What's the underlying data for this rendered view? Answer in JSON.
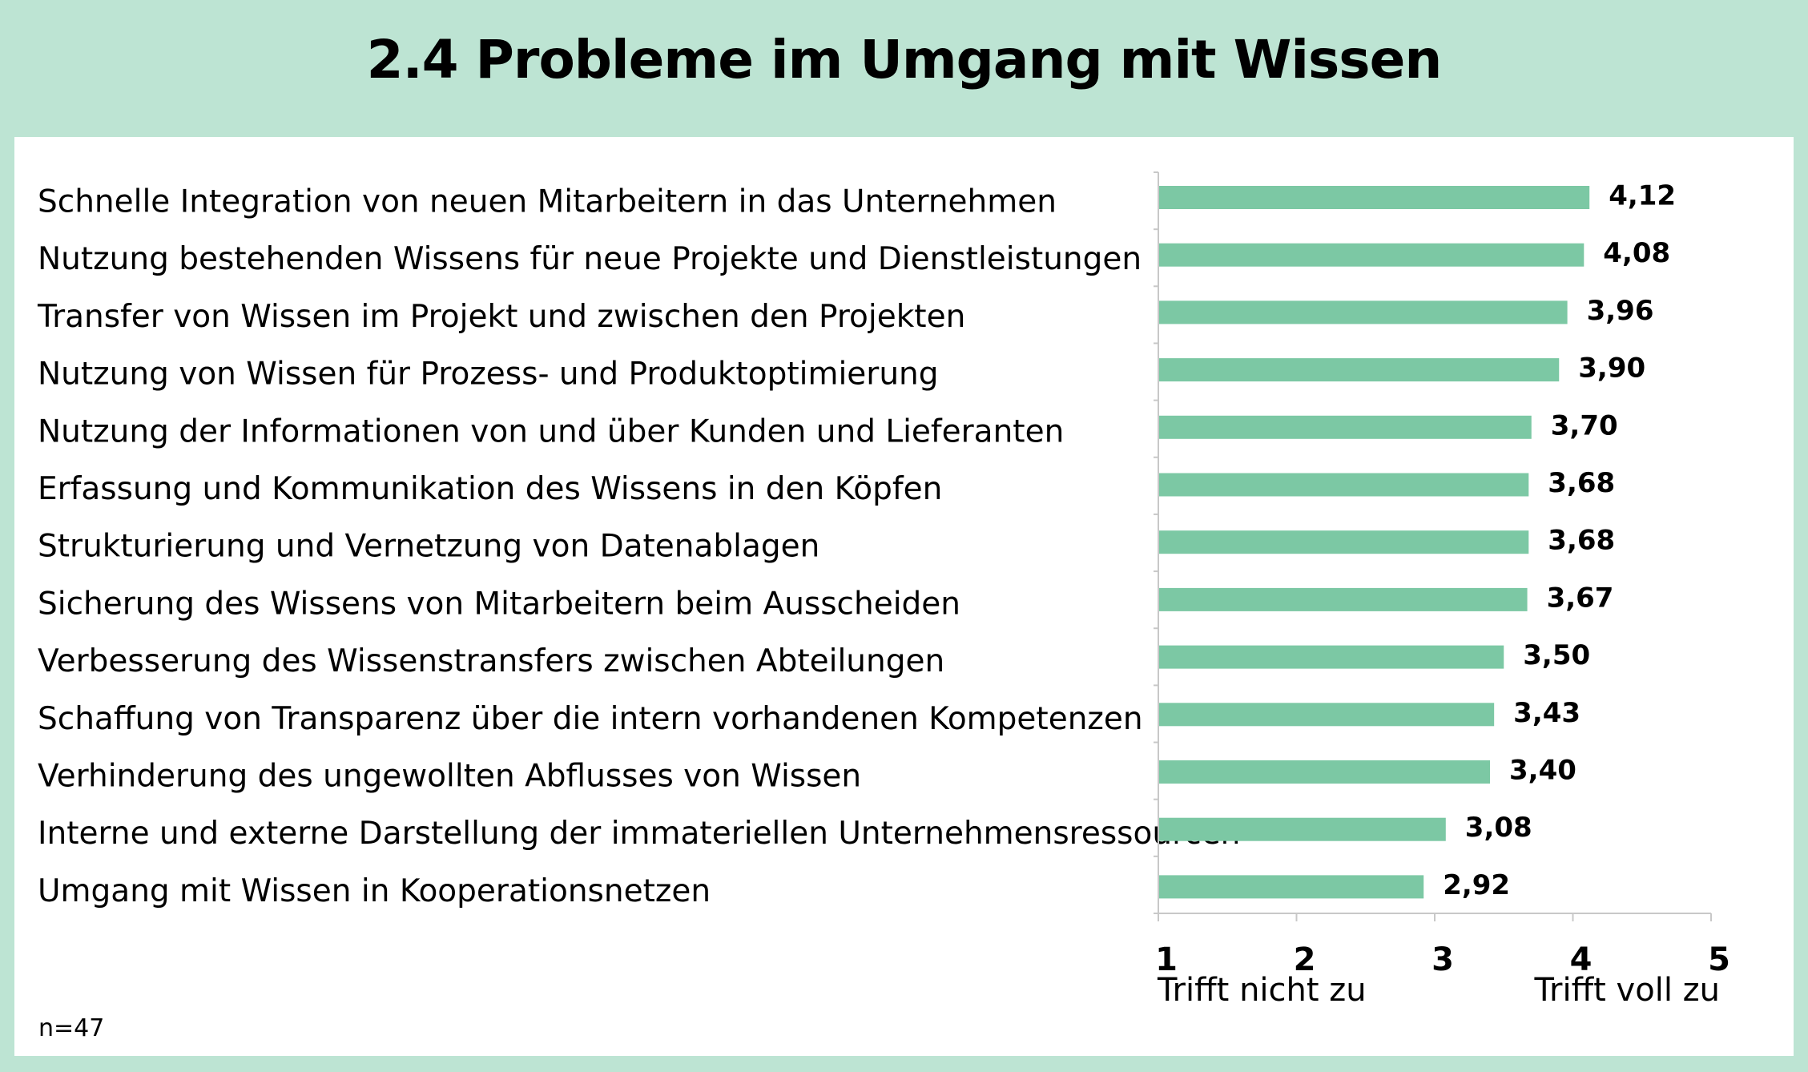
{
  "title": "2.4 Probleme im Umgang mit Wissen",
  "note": "n=47",
  "colors": {
    "background": "#bde4d3",
    "panel": "#ffffff",
    "bar": "#7cc8a4",
    "axis": "#c8c8c8"
  },
  "axis_captions": {
    "low": "Trifft nicht zu",
    "high": "Trifft voll zu"
  },
  "chart_data": {
    "type": "bar",
    "orientation": "horizontal",
    "title": "2.4 Probleme im Umgang mit Wissen",
    "xlim": [
      1,
      5
    ],
    "ticks": [
      1,
      2,
      3,
      4,
      5
    ],
    "tick_labels": [
      "1",
      "2",
      "3",
      "4",
      "5"
    ],
    "categories": [
      "Schnelle Integration von neuen Mitarbeitern in das Unternehmen",
      "Nutzung bestehenden Wissens für neue Projekte und Dienstleistungen",
      "Transfer von Wissen im Projekt und zwischen den Projekten",
      "Nutzung von Wissen für Prozess- und Produktoptimierung",
      "Nutzung der Informationen von und über Kunden und Lieferanten",
      "Erfassung und Kommunikation des Wissens in den Köpfen",
      "Strukturierung und Vernetzung von Datenablagen",
      "Sicherung des Wissens von Mitarbeitern beim Ausscheiden",
      "Verbesserung des Wissenstransfers zwischen Abteilungen",
      "Schaffung von Transparenz über die intern vorhandenen Kompetenzen",
      "Verhinderung des ungewollten Abflusses von Wissen",
      "Interne und externe Darstellung der immateriellen Unternehmensressourcen",
      "Umgang mit Wissen in Kooperationsnetzen"
    ],
    "values": [
      4.12,
      4.08,
      3.96,
      3.9,
      3.7,
      3.68,
      3.68,
      3.67,
      3.5,
      3.43,
      3.4,
      3.08,
      2.92
    ],
    "value_labels": [
      "4,12",
      "4,08",
      "3,96",
      "3,90",
      "3,70",
      "3,68",
      "3,68",
      "3,67",
      "3,50",
      "3,43",
      "3,40",
      "3,08",
      "2,92"
    ],
    "grid": false,
    "legend": false
  }
}
